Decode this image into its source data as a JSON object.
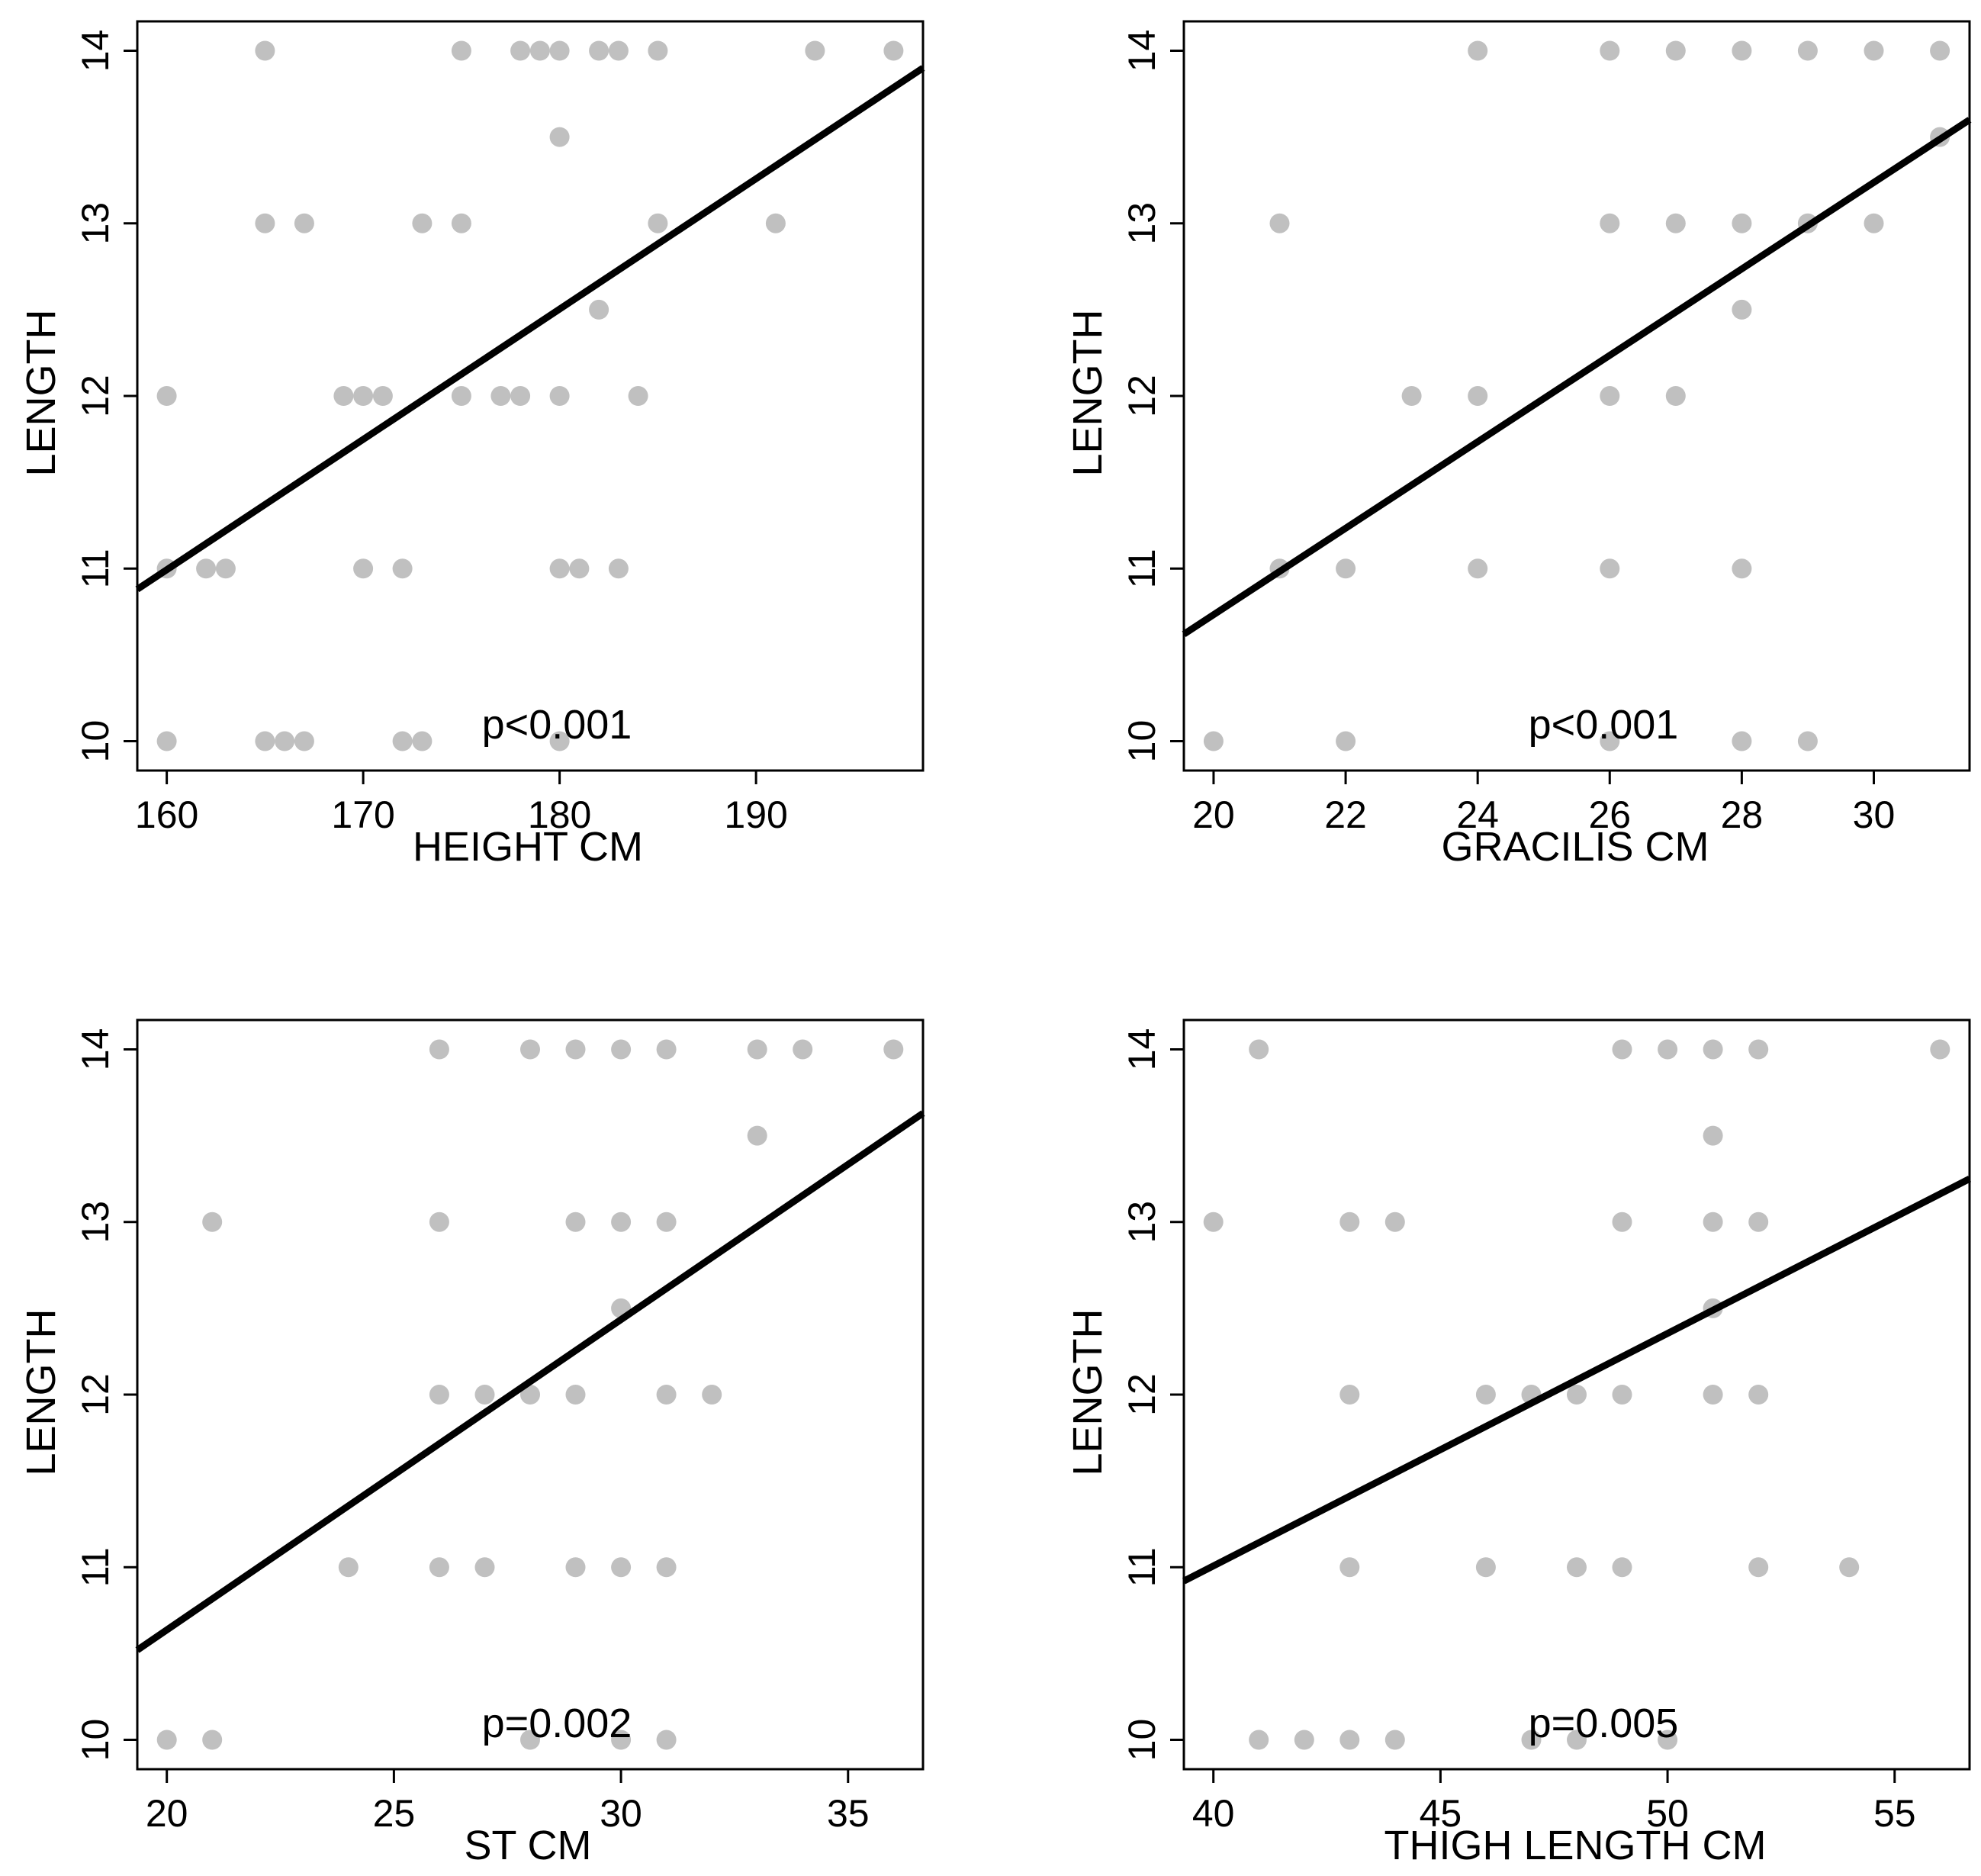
{
  "chart_data": [
    {
      "type": "scatter",
      "title": "",
      "xlabel": "HEIGHT CM",
      "ylabel": "LENGTH",
      "xlim": [
        158.5,
        198.5
      ],
      "ylim": [
        9.83,
        14.17
      ],
      "xticks": [
        160,
        170,
        180,
        190
      ],
      "yticks": [
        10,
        11,
        12,
        13,
        14
      ],
      "annotation": "p<0.001",
      "point_color": "#c0c0c0",
      "line_color": "#000000",
      "fit_line": {
        "x": [
          158.5,
          198.5
        ],
        "y": [
          10.88,
          13.9
        ]
      },
      "points": [
        {
          "x": 165,
          "y": 14
        },
        {
          "x": 175,
          "y": 14
        },
        {
          "x": 178,
          "y": 14
        },
        {
          "x": 179,
          "y": 14
        },
        {
          "x": 180,
          "y": 14
        },
        {
          "x": 182,
          "y": 14
        },
        {
          "x": 183,
          "y": 14
        },
        {
          "x": 185,
          "y": 14
        },
        {
          "x": 193,
          "y": 14
        },
        {
          "x": 197,
          "y": 14
        },
        {
          "x": 180,
          "y": 13.5
        },
        {
          "x": 165,
          "y": 13
        },
        {
          "x": 167,
          "y": 13
        },
        {
          "x": 173,
          "y": 13
        },
        {
          "x": 175,
          "y": 13
        },
        {
          "x": 185,
          "y": 13
        },
        {
          "x": 191,
          "y": 13
        },
        {
          "x": 182,
          "y": 12.5
        },
        {
          "x": 160,
          "y": 12
        },
        {
          "x": 169,
          "y": 12
        },
        {
          "x": 170,
          "y": 12
        },
        {
          "x": 171,
          "y": 12
        },
        {
          "x": 175,
          "y": 12
        },
        {
          "x": 177,
          "y": 12
        },
        {
          "x": 178,
          "y": 12
        },
        {
          "x": 180,
          "y": 12
        },
        {
          "x": 184,
          "y": 12
        },
        {
          "x": 160,
          "y": 11
        },
        {
          "x": 162,
          "y": 11
        },
        {
          "x": 163,
          "y": 11
        },
        {
          "x": 170,
          "y": 11
        },
        {
          "x": 172,
          "y": 11
        },
        {
          "x": 180,
          "y": 11
        },
        {
          "x": 181,
          "y": 11
        },
        {
          "x": 183,
          "y": 11
        },
        {
          "x": 160,
          "y": 10
        },
        {
          "x": 165,
          "y": 10
        },
        {
          "x": 166,
          "y": 10
        },
        {
          "x": 167,
          "y": 10
        },
        {
          "x": 172,
          "y": 10
        },
        {
          "x": 173,
          "y": 10
        },
        {
          "x": 180,
          "y": 10
        }
      ]
    },
    {
      "type": "scatter",
      "title": "",
      "xlabel": "GRACILIS CM",
      "ylabel": "LENGTH",
      "xlim": [
        19.55,
        31.45
      ],
      "ylim": [
        9.83,
        14.17
      ],
      "xticks": [
        20,
        22,
        24,
        26,
        28,
        30
      ],
      "yticks": [
        10,
        11,
        12,
        13,
        14
      ],
      "annotation": "p<0.001",
      "point_color": "#c0c0c0",
      "line_color": "#000000",
      "fit_line": {
        "x": [
          19.55,
          31.45
        ],
        "y": [
          10.62,
          13.6
        ]
      },
      "points": [
        {
          "x": 24,
          "y": 14
        },
        {
          "x": 26,
          "y": 14
        },
        {
          "x": 27,
          "y": 14
        },
        {
          "x": 28,
          "y": 14
        },
        {
          "x": 29,
          "y": 14
        },
        {
          "x": 30,
          "y": 14
        },
        {
          "x": 31,
          "y": 14
        },
        {
          "x": 31,
          "y": 13.5
        },
        {
          "x": 21,
          "y": 13
        },
        {
          "x": 26,
          "y": 13
        },
        {
          "x": 27,
          "y": 13
        },
        {
          "x": 28,
          "y": 13
        },
        {
          "x": 29,
          "y": 13
        },
        {
          "x": 30,
          "y": 13
        },
        {
          "x": 28,
          "y": 12.5
        },
        {
          "x": 23,
          "y": 12
        },
        {
          "x": 24,
          "y": 12
        },
        {
          "x": 26,
          "y": 12
        },
        {
          "x": 27,
          "y": 12
        },
        {
          "x": 21,
          "y": 11
        },
        {
          "x": 22,
          "y": 11
        },
        {
          "x": 24,
          "y": 11
        },
        {
          "x": 26,
          "y": 11
        },
        {
          "x": 28,
          "y": 11
        },
        {
          "x": 20,
          "y": 10
        },
        {
          "x": 22,
          "y": 10
        },
        {
          "x": 26,
          "y": 10
        },
        {
          "x": 28,
          "y": 10
        },
        {
          "x": 29,
          "y": 10
        }
      ]
    },
    {
      "type": "scatter",
      "title": "",
      "xlabel": "ST CM",
      "ylabel": "LENGTH",
      "xlim": [
        19.35,
        36.65
      ],
      "ylim": [
        9.83,
        14.17
      ],
      "xticks": [
        20,
        25,
        30,
        35
      ],
      "yticks": [
        10,
        11,
        12,
        13,
        14
      ],
      "annotation": "p=0.002",
      "point_color": "#c0c0c0",
      "line_color": "#000000",
      "fit_line": {
        "x": [
          19.35,
          36.65
        ],
        "y": [
          10.52,
          13.63
        ]
      },
      "points": [
        {
          "x": 26,
          "y": 14
        },
        {
          "x": 28,
          "y": 14
        },
        {
          "x": 29,
          "y": 14
        },
        {
          "x": 30,
          "y": 14
        },
        {
          "x": 31,
          "y": 14
        },
        {
          "x": 33,
          "y": 14
        },
        {
          "x": 34,
          "y": 14
        },
        {
          "x": 36,
          "y": 14
        },
        {
          "x": 33,
          "y": 13.5
        },
        {
          "x": 21,
          "y": 13
        },
        {
          "x": 26,
          "y": 13
        },
        {
          "x": 29,
          "y": 13
        },
        {
          "x": 30,
          "y": 13
        },
        {
          "x": 31,
          "y": 13
        },
        {
          "x": 30,
          "y": 12.5
        },
        {
          "x": 26,
          "y": 12
        },
        {
          "x": 27,
          "y": 12
        },
        {
          "x": 28,
          "y": 12
        },
        {
          "x": 29,
          "y": 12
        },
        {
          "x": 31,
          "y": 12
        },
        {
          "x": 32,
          "y": 12
        },
        {
          "x": 24,
          "y": 11
        },
        {
          "x": 26,
          "y": 11
        },
        {
          "x": 27,
          "y": 11
        },
        {
          "x": 29,
          "y": 11
        },
        {
          "x": 30,
          "y": 11
        },
        {
          "x": 31,
          "y": 11
        },
        {
          "x": 20,
          "y": 10
        },
        {
          "x": 21,
          "y": 10
        },
        {
          "x": 28,
          "y": 10
        },
        {
          "x": 30,
          "y": 10
        },
        {
          "x": 31,
          "y": 10
        }
      ]
    },
    {
      "type": "scatter",
      "title": "",
      "xlabel": "THIGH LENGTH CM",
      "ylabel": "LENGTH",
      "xlim": [
        39.35,
        56.65
      ],
      "ylim": [
        9.83,
        14.17
      ],
      "xticks": [
        40,
        45,
        50,
        55
      ],
      "yticks": [
        10,
        11,
        12,
        13,
        14
      ],
      "annotation": "p=0.005",
      "point_color": "#c0c0c0",
      "line_color": "#000000",
      "fit_line": {
        "x": [
          39.35,
          56.65
        ],
        "y": [
          10.92,
          13.25
        ]
      },
      "points": [
        {
          "x": 41,
          "y": 14
        },
        {
          "x": 49,
          "y": 14
        },
        {
          "x": 50,
          "y": 14
        },
        {
          "x": 51,
          "y": 14
        },
        {
          "x": 52,
          "y": 14
        },
        {
          "x": 56,
          "y": 14
        },
        {
          "x": 51,
          "y": 13.5
        },
        {
          "x": 40,
          "y": 13
        },
        {
          "x": 43,
          "y": 13
        },
        {
          "x": 44,
          "y": 13
        },
        {
          "x": 49,
          "y": 13
        },
        {
          "x": 51,
          "y": 13
        },
        {
          "x": 52,
          "y": 13
        },
        {
          "x": 51,
          "y": 12.5
        },
        {
          "x": 43,
          "y": 12
        },
        {
          "x": 46,
          "y": 12
        },
        {
          "x": 47,
          "y": 12
        },
        {
          "x": 48,
          "y": 12
        },
        {
          "x": 49,
          "y": 12
        },
        {
          "x": 51,
          "y": 12
        },
        {
          "x": 52,
          "y": 12
        },
        {
          "x": 43,
          "y": 11
        },
        {
          "x": 46,
          "y": 11
        },
        {
          "x": 48,
          "y": 11
        },
        {
          "x": 49,
          "y": 11
        },
        {
          "x": 52,
          "y": 11
        },
        {
          "x": 54,
          "y": 11
        },
        {
          "x": 41,
          "y": 10
        },
        {
          "x": 42,
          "y": 10
        },
        {
          "x": 43,
          "y": 10
        },
        {
          "x": 44,
          "y": 10
        },
        {
          "x": 47,
          "y": 10
        },
        {
          "x": 48,
          "y": 10
        },
        {
          "x": 50,
          "y": 10
        }
      ]
    }
  ]
}
